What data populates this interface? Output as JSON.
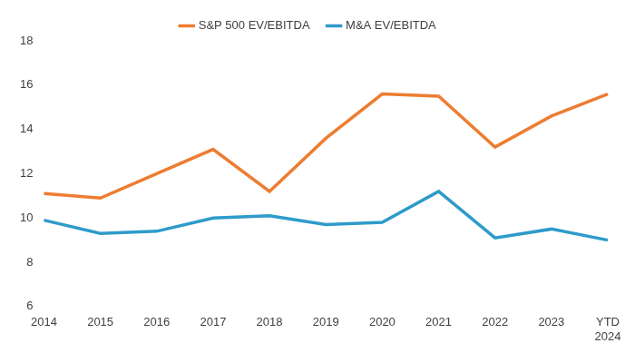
{
  "chart_data": {
    "type": "line",
    "categories": [
      "2014",
      "2015",
      "2016",
      "2017",
      "2018",
      "2019",
      "2020",
      "2021",
      "2022",
      "2023",
      "YTD 2024"
    ],
    "series": [
      {
        "name": "S&P 500 EV/EBITDA",
        "color": "#ED7D31",
        "values": [
          11.1,
          10.9,
          12.0,
          13.1,
          11.2,
          13.6,
          15.6,
          15.5,
          13.2,
          14.6,
          15.6
        ]
      },
      {
        "name": "M&A EV/EBITDA",
        "color": "#2E9BCA",
        "values": [
          9.9,
          9.3,
          9.4,
          10.0,
          10.1,
          9.7,
          9.8,
          11.2,
          9.1,
          9.5,
          9.0
        ]
      }
    ],
    "ylim": [
      6,
      18
    ],
    "yticks": [
      6,
      8,
      10,
      12,
      14,
      16,
      18
    ],
    "grid": false,
    "legend": "top"
  }
}
